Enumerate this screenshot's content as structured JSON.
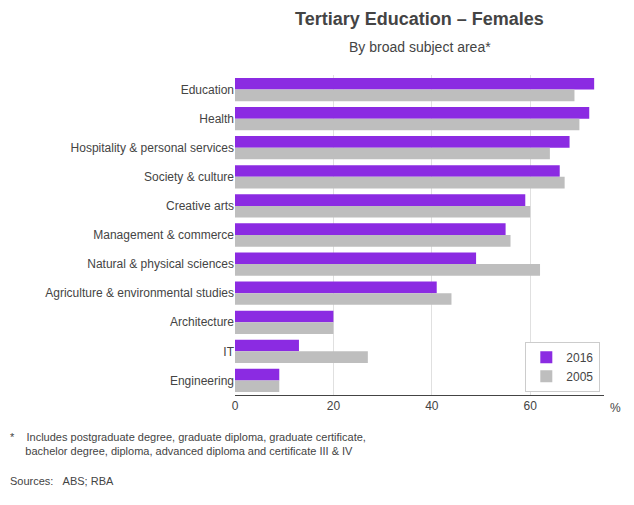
{
  "chart_data": {
    "type": "bar",
    "orientation": "horizontal",
    "title": "Tertiary Education – Females",
    "subtitle": "By broad subject area*",
    "categories": [
      "Education",
      "Health",
      "Hospitality & personal services",
      "Society & culture",
      "Creative arts",
      "Management & commerce",
      "Natural & physical sciences",
      "Agriculture & environmental studies",
      "Architecture",
      "IT",
      "Engineering"
    ],
    "series": [
      {
        "name": "2016",
        "color": "#8B2BE2",
        "values": [
          73,
          72,
          68,
          66,
          59,
          55,
          49,
          41,
          20,
          13,
          9
        ]
      },
      {
        "name": "2005",
        "color": "#BEBEBE",
        "values": [
          69,
          70,
          64,
          67,
          60,
          56,
          62,
          44,
          20,
          27,
          9
        ]
      }
    ],
    "xlim": [
      0,
      75
    ],
    "xticks": [
      0,
      20,
      40,
      60
    ],
    "xlabel": "%",
    "grid": true,
    "legend": "lower right",
    "footnote": "*    Includes postgraduate degree, graduate diploma, graduate certificate,\n     bachelor degree, diploma, advanced diploma and certificate III & IV",
    "sources": "Sources:   ABS; RBA"
  }
}
